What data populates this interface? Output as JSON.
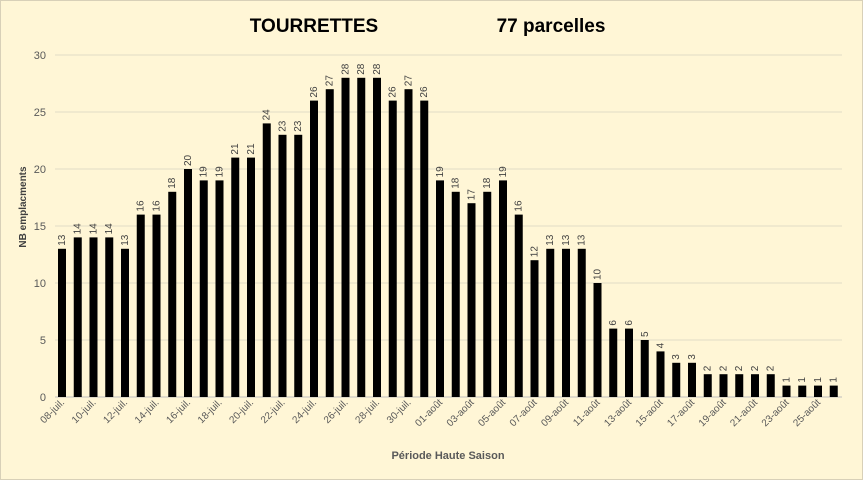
{
  "chart_data": {
    "type": "bar",
    "title": "TOURRETTES",
    "subtitle": "77 parcelles",
    "xlabel": "Période Haute Saison",
    "ylabel": "NB emplacments",
    "ylim": [
      0,
      30
    ],
    "yticks": [
      0,
      5,
      10,
      15,
      20,
      25,
      30
    ],
    "grid": true,
    "bar_color": "#000000",
    "categories": [
      "08-juil.",
      "09-juil.",
      "10-juil.",
      "11-juil.",
      "12-juil.",
      "13-juil.",
      "14-juil.",
      "15-juil.",
      "16-juil.",
      "17-juil.",
      "18-juil.",
      "19-juil.",
      "20-juil.",
      "21-juil.",
      "22-juil.",
      "23-juil.",
      "24-juil.",
      "25-juil.",
      "26-juil.",
      "27-juil.",
      "28-juil.",
      "29-juil.",
      "30-juil.",
      "31-juil.",
      "01-août",
      "02-août",
      "03-août",
      "04-août",
      "05-août",
      "06-août",
      "07-août",
      "08-août",
      "09-août",
      "10-août",
      "11-août",
      "12-août",
      "13-août",
      "14-août",
      "15-août",
      "16-août",
      "17-août",
      "18-août",
      "19-août",
      "20-août",
      "21-août",
      "22-août",
      "23-août",
      "24-août",
      "25-août",
      "26-août"
    ],
    "shown_tick_labels": [
      "08-juil.",
      "10-juil.",
      "12-juil.",
      "14-juil.",
      "16-juil.",
      "18-juil.",
      "20-juil.",
      "22-juil.",
      "24-juil.",
      "26-juil.",
      "28-juil.",
      "30-juil.",
      "01-août",
      "03-août",
      "05-août",
      "07-août",
      "09-août",
      "11-août",
      "13-août",
      "15-août",
      "17-août",
      "19-août",
      "21-août",
      "23-août",
      "25-août"
    ],
    "values": [
      13,
      14,
      14,
      14,
      13,
      16,
      16,
      18,
      20,
      19,
      19,
      21,
      21,
      24,
      23,
      23,
      26,
      27,
      28,
      28,
      28,
      26,
      27,
      26,
      19,
      18,
      17,
      18,
      19,
      16,
      12,
      13,
      13,
      13,
      10,
      6,
      6,
      5,
      4,
      3,
      3,
      2,
      2,
      2,
      2,
      2,
      1,
      1,
      1,
      1
    ]
  }
}
